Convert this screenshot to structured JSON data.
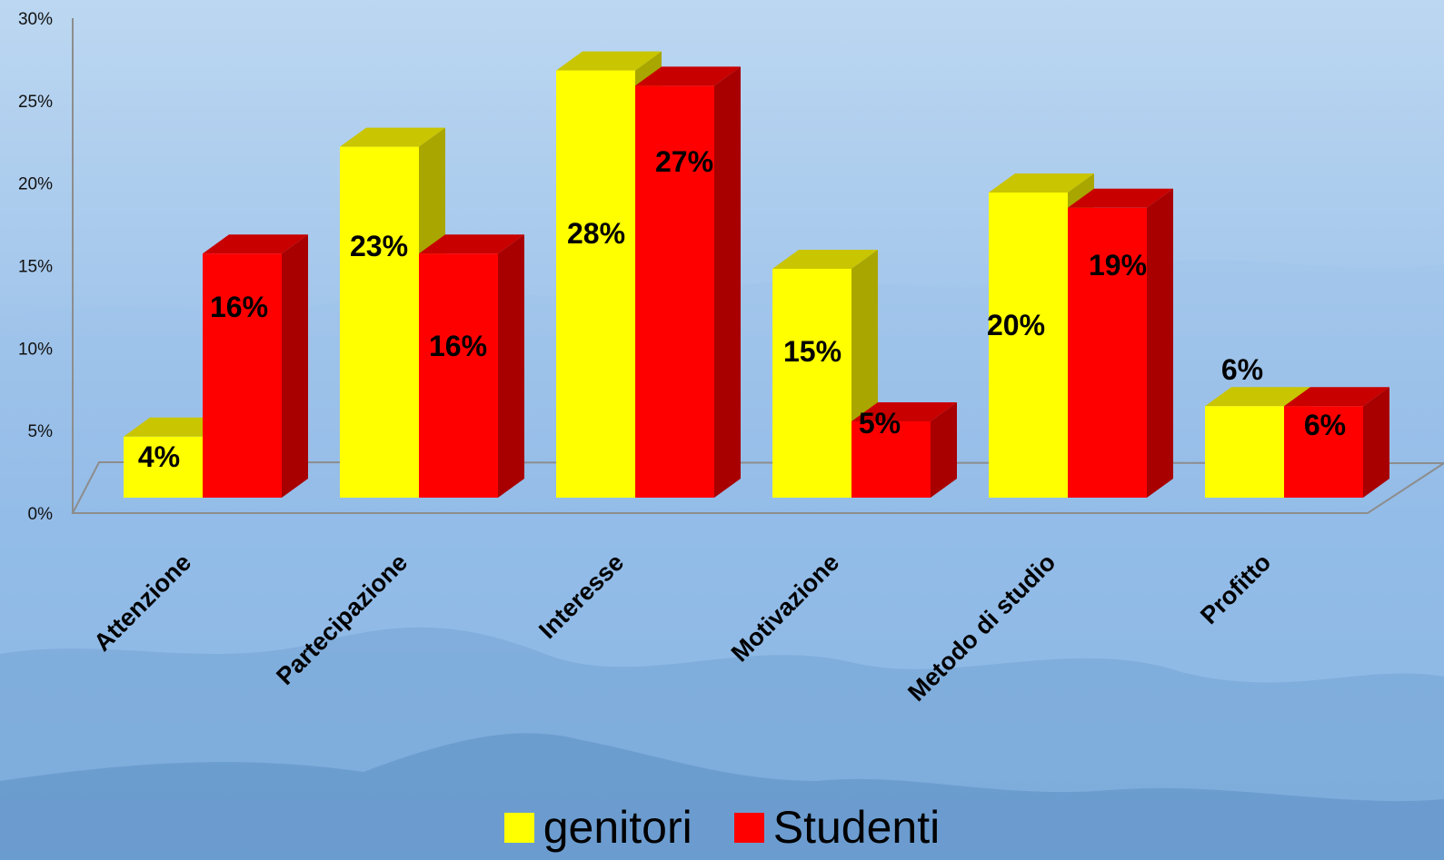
{
  "chart_data": {
    "type": "bar",
    "categories": [
      "Attenzione",
      "Partecipazione",
      "Interesse",
      "Motivazione",
      "Metodo di studio",
      "Profitto"
    ],
    "series": [
      {
        "name": "genitori",
        "values": [
          4,
          23,
          28,
          15,
          20,
          6
        ],
        "labels": [
          "4%",
          "23%",
          "28%",
          "15%",
          "20%",
          "6%"
        ],
        "color": "#ffff00",
        "side_color": "#a9a600",
        "top_color": "#c9c500"
      },
      {
        "name": "Studenti",
        "values": [
          16,
          16,
          27,
          5,
          19,
          6
        ],
        "labels": [
          "16%",
          "16%",
          "27%",
          "5%",
          "19%",
          "6%"
        ],
        "color": "#ff0000",
        "side_color": "#a80000",
        "top_color": "#c80000"
      }
    ],
    "y_ticks": [
      "0%",
      "5%",
      "10%",
      "15%",
      "20%",
      "25%",
      "30%"
    ],
    "ylim": [
      0,
      30
    ],
    "grid": false,
    "legend_position": "bottom",
    "bar_style": "3d"
  },
  "colors": {
    "axis": "#8d8d8d",
    "background_top": "#bcd7f1",
    "background_bottom": "#7fb0e2"
  }
}
